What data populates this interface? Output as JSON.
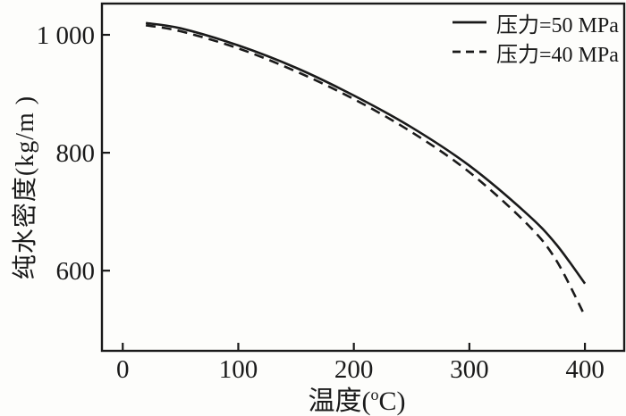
{
  "style": {
    "background": "#fdfdfb",
    "frame_color": "#1a1a1a",
    "line_color": "#1a1a1a"
  },
  "chart_data": {
    "type": "line",
    "title": "",
    "xlabel": {
      "pre": "温度(",
      "sup": "o",
      "post": "C)"
    },
    "xlabel_text": "温度(°C)",
    "ylabel": "纯水密度(kg/m )",
    "xlim": [
      -18,
      434
    ],
    "ylim": [
      464,
      1053
    ],
    "grid": false,
    "legend_position": "top-right-inside",
    "x_ticks": [
      {
        "v": 0,
        "label": "0"
      },
      {
        "v": 100,
        "label": "100"
      },
      {
        "v": 200,
        "label": "200"
      },
      {
        "v": 300,
        "label": "300"
      },
      {
        "v": 400,
        "label": "400"
      }
    ],
    "y_ticks": [
      {
        "v": 600,
        "label": "600"
      },
      {
        "v": 800,
        "label": "800"
      },
      {
        "v": 1000,
        "label": "1 000"
      }
    ],
    "x": [
      20,
      50,
      100,
      150,
      200,
      250,
      300,
      350,
      375,
      400
    ],
    "series": [
      {
        "name": "压力=50 MPa",
        "line_style": "solid",
        "values": [
          1020,
          1011,
          982,
          944,
          897,
          843,
          778,
          696,
          645,
          578
        ]
      },
      {
        "name": "压力=40 MPa",
        "line_style": "dashed",
        "values": [
          1016,
          1006,
          977,
          938,
          891,
          835,
          767,
          679,
          618,
          523
        ]
      }
    ]
  }
}
